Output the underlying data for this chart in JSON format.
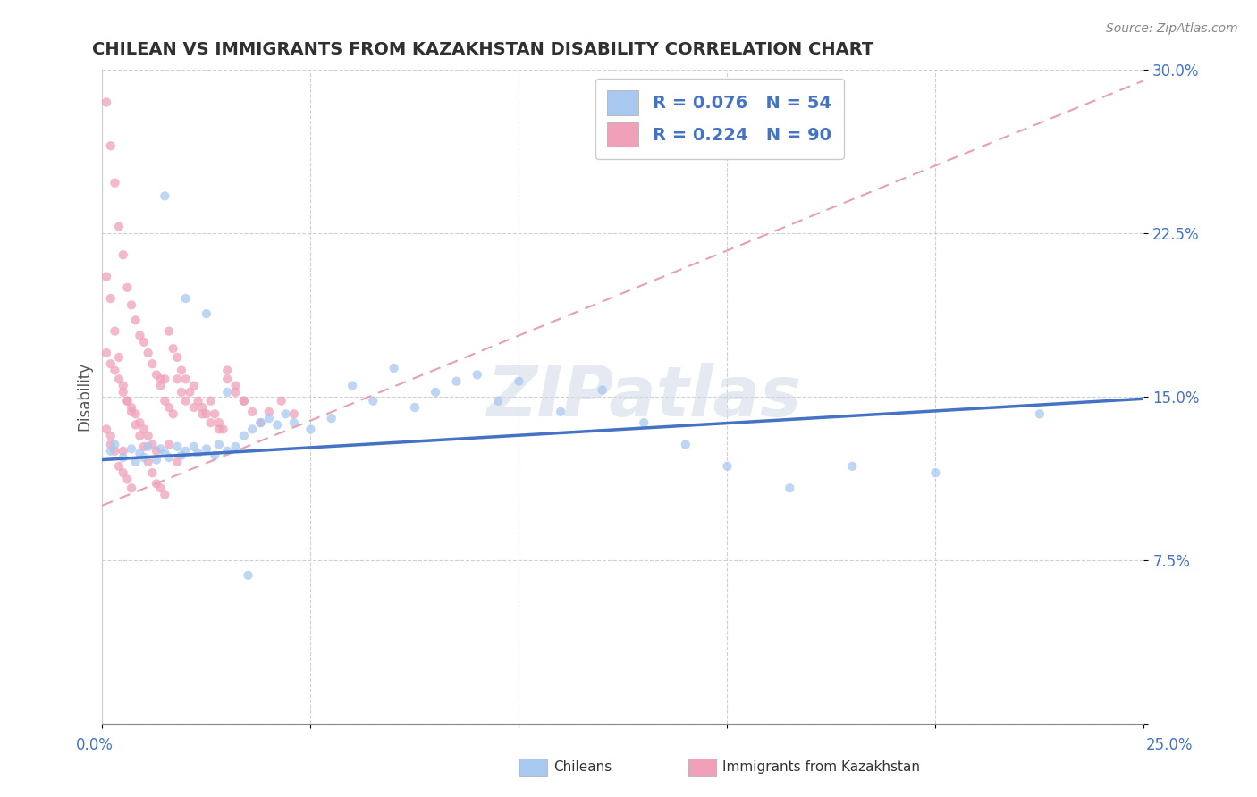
{
  "title": "CHILEAN VS IMMIGRANTS FROM KAZAKHSTAN DISABILITY CORRELATION CHART",
  "source": "Source: ZipAtlas.com",
  "ylabel": "Disability",
  "xlim": [
    0.0,
    0.25
  ],
  "ylim": [
    0.0,
    0.3
  ],
  "yticks": [
    0.0,
    0.075,
    0.15,
    0.225,
    0.3
  ],
  "ytick_labels": [
    "",
    "7.5%",
    "15.0%",
    "22.5%",
    "30.0%"
  ],
  "xtick_labels": [
    "0.0%",
    "25.0%"
  ],
  "watermark": "ZIPatlas",
  "legend_r1": "R = 0.076",
  "legend_n1": "N = 54",
  "legend_r2": "R = 0.224",
  "legend_n2": "N = 90",
  "color_chilean": "#a8c8f0",
  "color_kazakhstan": "#f0a0b8",
  "line_color_chilean": "#4472c4",
  "line_color_kazakhstan": "#e06080",
  "line_color_kaz_trend": "#e8a0b0",
  "background_color": "#ffffff",
  "title_color": "#303030",
  "source_color": "#888888",
  "tick_color": "#4472c4",
  "grid_color": "#cccccc",
  "chilean_x": [
    0.002,
    0.003,
    0.005,
    0.007,
    0.008,
    0.009,
    0.01,
    0.011,
    0.013,
    0.014,
    0.015,
    0.016,
    0.018,
    0.019,
    0.02,
    0.022,
    0.023,
    0.025,
    0.027,
    0.028,
    0.03,
    0.032,
    0.034,
    0.036,
    0.038,
    0.04,
    0.042,
    0.044,
    0.046,
    0.05,
    0.055,
    0.06,
    0.065,
    0.07,
    0.075,
    0.08,
    0.085,
    0.09,
    0.095,
    0.1,
    0.11,
    0.12,
    0.13,
    0.14,
    0.15,
    0.165,
    0.18,
    0.2,
    0.225,
    0.015,
    0.02,
    0.025,
    0.03,
    0.035
  ],
  "chilean_y": [
    0.125,
    0.128,
    0.122,
    0.126,
    0.12,
    0.124,
    0.122,
    0.127,
    0.121,
    0.126,
    0.124,
    0.122,
    0.127,
    0.123,
    0.125,
    0.127,
    0.124,
    0.126,
    0.123,
    0.128,
    0.125,
    0.127,
    0.132,
    0.135,
    0.138,
    0.14,
    0.137,
    0.142,
    0.138,
    0.135,
    0.14,
    0.155,
    0.148,
    0.163,
    0.145,
    0.152,
    0.157,
    0.16,
    0.148,
    0.157,
    0.143,
    0.153,
    0.138,
    0.128,
    0.118,
    0.108,
    0.118,
    0.115,
    0.142,
    0.242,
    0.195,
    0.188,
    0.152,
    0.068
  ],
  "kaz_x": [
    0.001,
    0.001,
    0.001,
    0.002,
    0.002,
    0.002,
    0.003,
    0.003,
    0.004,
    0.004,
    0.005,
    0.005,
    0.005,
    0.006,
    0.006,
    0.007,
    0.007,
    0.008,
    0.008,
    0.009,
    0.009,
    0.01,
    0.01,
    0.011,
    0.011,
    0.012,
    0.012,
    0.013,
    0.013,
    0.014,
    0.014,
    0.015,
    0.015,
    0.016,
    0.016,
    0.017,
    0.018,
    0.018,
    0.019,
    0.02,
    0.021,
    0.022,
    0.023,
    0.024,
    0.025,
    0.026,
    0.027,
    0.028,
    0.029,
    0.03,
    0.032,
    0.034,
    0.036,
    0.038,
    0.04,
    0.043,
    0.046,
    0.001,
    0.002,
    0.002,
    0.003,
    0.003,
    0.004,
    0.004,
    0.005,
    0.005,
    0.006,
    0.006,
    0.007,
    0.007,
    0.008,
    0.009,
    0.01,
    0.011,
    0.012,
    0.013,
    0.014,
    0.015,
    0.016,
    0.017,
    0.018,
    0.019,
    0.02,
    0.022,
    0.024,
    0.026,
    0.028,
    0.03,
    0.032,
    0.034
  ],
  "kaz_y": [
    0.285,
    0.205,
    0.135,
    0.265,
    0.195,
    0.132,
    0.248,
    0.18,
    0.228,
    0.168,
    0.215,
    0.155,
    0.125,
    0.2,
    0.148,
    0.192,
    0.143,
    0.185,
    0.137,
    0.178,
    0.132,
    0.175,
    0.127,
    0.17,
    0.12,
    0.165,
    0.115,
    0.16,
    0.11,
    0.158,
    0.108,
    0.158,
    0.105,
    0.18,
    0.128,
    0.172,
    0.168,
    0.12,
    0.162,
    0.158,
    0.152,
    0.155,
    0.148,
    0.145,
    0.142,
    0.148,
    0.142,
    0.138,
    0.135,
    0.158,
    0.152,
    0.148,
    0.143,
    0.138,
    0.143,
    0.148,
    0.142,
    0.17,
    0.165,
    0.128,
    0.162,
    0.125,
    0.158,
    0.118,
    0.152,
    0.115,
    0.148,
    0.112,
    0.145,
    0.108,
    0.142,
    0.138,
    0.135,
    0.132,
    0.128,
    0.125,
    0.155,
    0.148,
    0.145,
    0.142,
    0.158,
    0.152,
    0.148,
    0.145,
    0.142,
    0.138,
    0.135,
    0.162,
    0.155,
    0.148
  ],
  "chilean_trend_x0": 0.0,
  "chilean_trend_y0": 0.121,
  "chilean_trend_x1": 0.25,
  "chilean_trend_y1": 0.149,
  "kaz_trend_x0": 0.0,
  "kaz_trend_y0": 0.1,
  "kaz_trend_x1": 0.25,
  "kaz_trend_y1": 0.295
}
